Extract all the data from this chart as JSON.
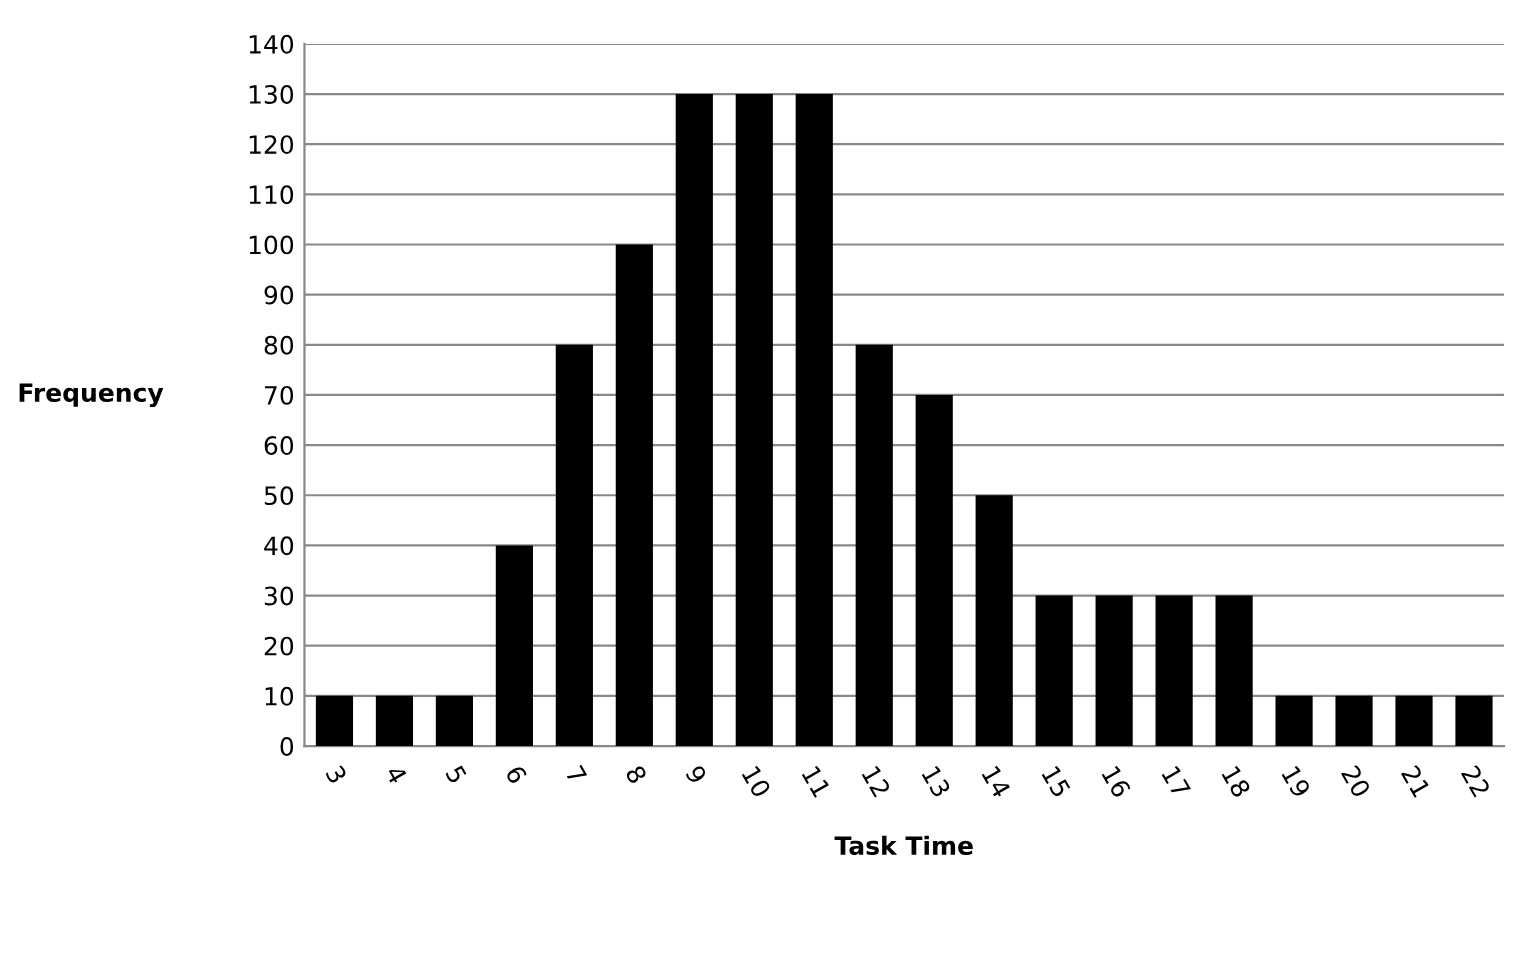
{
  "chart_data": {
    "type": "bar",
    "xlabel": "Task Time",
    "ylabel": "Frequency",
    "categories": [
      "3",
      "4",
      "5",
      "6",
      "7",
      "8",
      "9",
      "10",
      "11",
      "12",
      "13",
      "14",
      "15",
      "16",
      "17",
      "18",
      "19",
      "20",
      "21",
      "22"
    ],
    "values": [
      10,
      10,
      10,
      40,
      80,
      100,
      130,
      130,
      130,
      80,
      70,
      50,
      30,
      30,
      30,
      30,
      10,
      10,
      10,
      10
    ],
    "color": "#000000",
    "ylim": [
      0,
      140
    ],
    "yticks": [
      0,
      10,
      20,
      30,
      40,
      50,
      60,
      70,
      80,
      90,
      100,
      110,
      120,
      130,
      140
    ],
    "grid": "y",
    "legend": false
  }
}
